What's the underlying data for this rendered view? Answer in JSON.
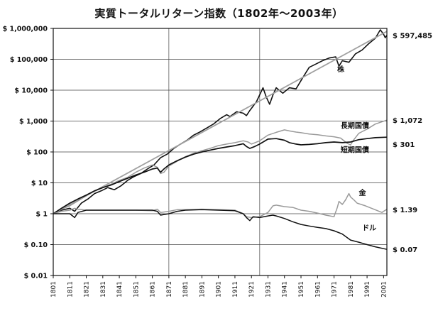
{
  "chart_data": {
    "type": "line",
    "title": "実質トータルリターン指数（1802年～2003年）",
    "xlabel": "",
    "ylabel": "",
    "xlim": [
      1801,
      2003
    ],
    "ylim": [
      0.01,
      1000000
    ],
    "y_scale": "log",
    "grid": true,
    "y_ticks": [
      {
        "value": 1000000,
        "label": "$ 1,000,000"
      },
      {
        "value": 100000,
        "label": "$ 100,000"
      },
      {
        "value": 10000,
        "label": "$ 10,000"
      },
      {
        "value": 1000,
        "label": "$ 1,000"
      },
      {
        "value": 100,
        "label": "$ 100"
      },
      {
        "value": 10,
        "label": "$ 10"
      },
      {
        "value": 1,
        "label": "$ 1"
      },
      {
        "value": 0.1,
        "label": "$ 0.10"
      },
      {
        "value": 0.01,
        "label": "$ 0.01"
      }
    ],
    "x_ticks": [
      "1801",
      "1811",
      "1821",
      "1831",
      "1841",
      "1851",
      "1861",
      "1871",
      "1881",
      "1891",
      "1901",
      "1911",
      "1921",
      "1931",
      "1941",
      "1951",
      "1961",
      "1971",
      "1981",
      "1991",
      "2001"
    ],
    "vertical_gridlines": [
      1871,
      1926
    ],
    "series": [
      {
        "name": "株",
        "end_label": "$ 597,485",
        "color": "#111111",
        "x": [
          1801,
          1806,
          1811,
          1814,
          1818,
          1822,
          1826,
          1830,
          1834,
          1838,
          1842,
          1846,
          1850,
          1854,
          1858,
          1862,
          1864,
          1866,
          1870,
          1874,
          1878,
          1882,
          1886,
          1890,
          1894,
          1898,
          1902,
          1906,
          1908,
          1912,
          1916,
          1918,
          1920,
          1924,
          1928,
          1930,
          1932,
          1934,
          1936,
          1940,
          1944,
          1948,
          1952,
          1956,
          1960,
          1964,
          1968,
          1972,
          1974,
          1976,
          1980,
          1984,
          1988,
          1992,
          1996,
          1999,
          2001,
          2002,
          2003
        ],
        "y": [
          1,
          1.3,
          1.5,
          1.2,
          2.2,
          3,
          4.5,
          5.5,
          7,
          6,
          8,
          12,
          16,
          20,
          28,
          38,
          50,
          65,
          85,
          130,
          180,
          240,
          350,
          450,
          600,
          800,
          1200,
          1600,
          1400,
          2000,
          1800,
          1500,
          2200,
          4200,
          12000,
          6000,
          3500,
          7000,
          12000,
          8000,
          12000,
          11000,
          25000,
          55000,
          70000,
          90000,
          110000,
          120000,
          60000,
          90000,
          80000,
          150000,
          200000,
          320000,
          480000,
          900000,
          650000,
          500000,
          597485
        ]
      },
      {
        "name": "株 trend",
        "color": "#a0a0a0",
        "x": [
          1801,
          2003
        ],
        "y": [
          1,
          800000
        ]
      },
      {
        "name": "長期国債",
        "end_label": "$ 1,072",
        "color": "#9a9a9a",
        "x": [
          1801,
          1806,
          1811,
          1816,
          1821,
          1826,
          1831,
          1836,
          1841,
          1846,
          1851,
          1856,
          1861,
          1864,
          1866,
          1868,
          1871,
          1876,
          1881,
          1886,
          1891,
          1896,
          1901,
          1906,
          1911,
          1916,
          1919,
          1921,
          1926,
          1931,
          1936,
          1941,
          1944,
          1948,
          1951,
          1956,
          1961,
          1966,
          1971,
          1975,
          1979,
          1981,
          1983,
          1986,
          1991,
          1996,
          2003
        ],
        "y": [
          1,
          1.4,
          1.8,
          2.6,
          3.8,
          5.5,
          7,
          9,
          12,
          15,
          22,
          30,
          38,
          32,
          20,
          22,
          35,
          50,
          70,
          90,
          110,
          130,
          160,
          180,
          200,
          230,
          210,
          180,
          230,
          350,
          430,
          520,
          480,
          440,
          420,
          380,
          360,
          330,
          310,
          280,
          190,
          170,
          250,
          400,
          550,
          800,
          1072
        ]
      },
      {
        "name": "短期国債",
        "end_label": "$ 301",
        "color": "#111111",
        "x": [
          1801,
          1806,
          1811,
          1816,
          1821,
          1826,
          1831,
          1836,
          1841,
          1846,
          1851,
          1856,
          1861,
          1864,
          1866,
          1868,
          1871,
          1876,
          1881,
          1886,
          1891,
          1896,
          1901,
          1906,
          1911,
          1916,
          1918,
          1920,
          1923,
          1926,
          1931,
          1936,
          1941,
          1944,
          1948,
          1951,
          1956,
          1961,
          1966,
          1971,
          1976,
          1981,
          1986,
          1991,
          1996,
          2003
        ],
        "y": [
          1,
          1.5,
          2.2,
          3,
          4,
          5.5,
          7,
          8.5,
          11,
          14,
          18,
          22,
          28,
          30,
          22,
          28,
          38,
          52,
          68,
          85,
          100,
          115,
          130,
          145,
          160,
          185,
          150,
          130,
          150,
          180,
          260,
          270,
          240,
          200,
          180,
          170,
          175,
          185,
          200,
          210,
          200,
          210,
          250,
          270,
          290,
          301
        ]
      },
      {
        "name": "金",
        "end_label": "$ 1.39",
        "color": "#9a9a9a",
        "x": [
          1801,
          1806,
          1811,
          1814,
          1816,
          1821,
          1826,
          1831,
          1841,
          1851,
          1861,
          1864,
          1866,
          1871,
          1876,
          1881,
          1891,
          1901,
          1911,
          1916,
          1918,
          1921,
          1926,
          1931,
          1934,
          1936,
          1941,
          1946,
          1951,
          1956,
          1961,
          1966,
          1971,
          1973,
          1974,
          1976,
          1978,
          1980,
          1981,
          1983,
          1985,
          1990,
          1995,
          2000,
          2001,
          2003
        ],
        "y": [
          1,
          1.2,
          1.3,
          1.5,
          1.4,
          1.3,
          1.3,
          1.3,
          1.3,
          1.3,
          1.25,
          1.4,
          1.1,
          1.2,
          1.35,
          1.35,
          1.4,
          1.35,
          1.3,
          1.0,
          0.8,
          0.75,
          0.8,
          1.1,
          1.8,
          1.9,
          1.7,
          1.6,
          1.3,
          1.2,
          1.05,
          0.9,
          0.8,
          1.6,
          2.5,
          2.0,
          2.8,
          4.5,
          3.5,
          2.8,
          2.2,
          1.8,
          1.4,
          1.1,
          1.2,
          1.39
        ]
      },
      {
        "name": "ドル",
        "end_label": "$ 0.07",
        "color": "#111111",
        "x": [
          1801,
          1806,
          1811,
          1814,
          1816,
          1821,
          1826,
          1831,
          1841,
          1851,
          1861,
          1864,
          1866,
          1871,
          1876,
          1881,
          1891,
          1901,
          1911,
          1916,
          1918,
          1920,
          1922,
          1926,
          1931,
          1934,
          1936,
          1941,
          1946,
          1951,
          1956,
          1961,
          1966,
          1971,
          1976,
          1981,
          1986,
          1991,
          1996,
          2003
        ],
        "y": [
          1,
          1.0,
          1.0,
          0.75,
          1.1,
          1.3,
          1.3,
          1.3,
          1.3,
          1.3,
          1.3,
          1.2,
          0.9,
          1.0,
          1.2,
          1.3,
          1.35,
          1.3,
          1.25,
          1.0,
          0.75,
          0.6,
          0.8,
          0.75,
          0.85,
          0.9,
          0.85,
          0.7,
          0.55,
          0.45,
          0.4,
          0.36,
          0.33,
          0.28,
          0.22,
          0.14,
          0.12,
          0.1,
          0.085,
          0.07
        ]
      }
    ]
  }
}
